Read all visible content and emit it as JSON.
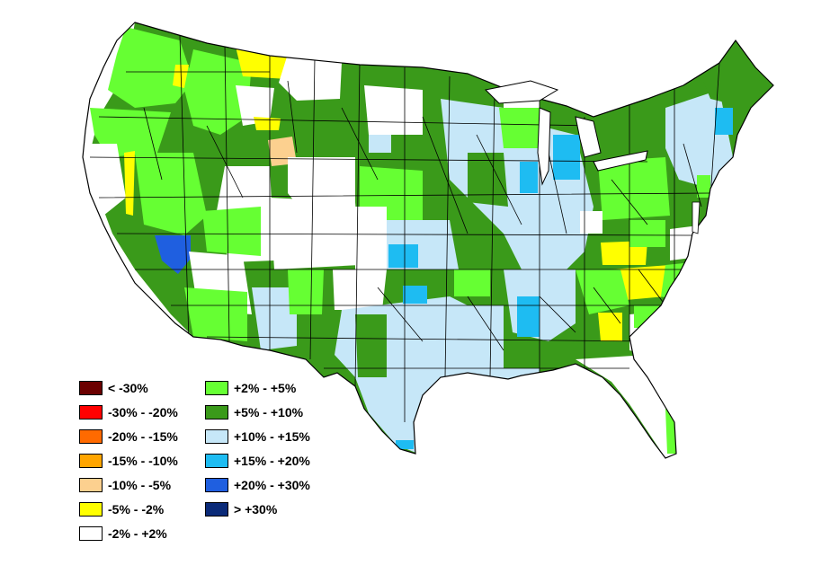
{
  "legend": {
    "items": [
      {
        "label": "< -30%",
        "color": "#6b0000"
      },
      {
        "label": "-30% - -20%",
        "color": "#ff0000"
      },
      {
        "label": "-20% - -15%",
        "color": "#ff6a00"
      },
      {
        "label": "-15% - -10%",
        "color": "#ffa500"
      },
      {
        "label": "-10% - -5%",
        "color": "#fcd08f"
      },
      {
        "label": "-5% - -2%",
        "color": "#ffff00"
      },
      {
        "label": "-2% - +2%",
        "color": "#ffffff"
      },
      {
        "label": "+2% - +5%",
        "color": "#66ff33"
      },
      {
        "label": "+5% - +10%",
        "color": "#3a9a1a"
      },
      {
        "label": "+10% - +15%",
        "color": "#c6e7f8"
      },
      {
        "label": "+15% - +20%",
        "color": "#1ebcf2"
      },
      {
        "label": "+20% - +30%",
        "color": "#1f5fe0"
      },
      {
        "label": "> +30%",
        "color": "#0a2a78"
      }
    ]
  }
}
